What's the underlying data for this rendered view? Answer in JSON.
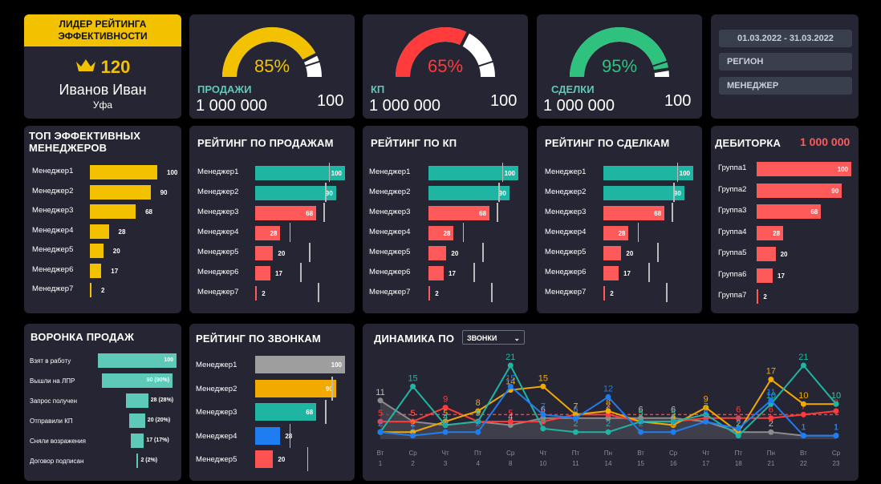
{
  "leader": {
    "banner": "ЛИДЕР РЕЙТИНГА ЭФФЕКТИВНОСТИ",
    "score": "120",
    "name": "Иванов Иван",
    "city": "Уфа",
    "crown_icon": "crown-icon",
    "accent": "#f2c200"
  },
  "gauges": [
    {
      "pct_label": "85%",
      "fraction": 0.85,
      "label": "ПРОДАЖИ",
      "value": "1 000 000",
      "target": "100",
      "color": "#f2c200"
    },
    {
      "pct_label": "65%",
      "fraction": 0.65,
      "label": "КП",
      "value": "1 000 000",
      "target": "100",
      "color": "#ff3b3b"
    },
    {
      "pct_label": "95%",
      "fraction": 0.95,
      "label": "СДЕЛКИ",
      "value": "1 000 000",
      "target": "100",
      "color": "#2ec27e"
    }
  ],
  "filters": {
    "period": "01.03.2022 - 31.03.2022",
    "region": "РЕГИОН",
    "manager": "МЕНЕДЖЕР"
  },
  "top_managers": {
    "title": "ТОП ЭФФЕКТИВНЫХ МЕНЕДЖЕРОВ",
    "rows": [
      {
        "label": "Менеджер1",
        "value": 100
      },
      {
        "label": "Менеджер2",
        "value": 90
      },
      {
        "label": "Менеджер3",
        "value": 68
      },
      {
        "label": "Менеджер4",
        "value": 28
      },
      {
        "label": "Менеджер5",
        "value": 20
      },
      {
        "label": "Менеджер6",
        "value": 17
      },
      {
        "label": "Менеджер7",
        "value": 2
      }
    ]
  },
  "rating_sales": {
    "title": "РЕЙТИНГ ПО ПРОДАЖАМ",
    "rows": [
      {
        "label": "Менеджер1",
        "value": 100,
        "target": 82
      },
      {
        "label": "Менеджер2",
        "value": 90,
        "target": 78
      },
      {
        "label": "Менеджер3",
        "value": 68,
        "target": 76
      },
      {
        "label": "Менеджер4",
        "value": 28,
        "target": 38
      },
      {
        "label": "Менеджер5",
        "value": 20,
        "target": 60
      },
      {
        "label": "Менеджер6",
        "value": 17,
        "target": 50
      },
      {
        "label": "Менеджер7",
        "value": 2,
        "target": 70
      }
    ]
  },
  "rating_kp": {
    "title": "РЕЙТИНГ ПО КП",
    "rows": [
      {
        "label": "Менеджер1",
        "value": 100,
        "target": 82
      },
      {
        "label": "Менеджер2",
        "value": 90,
        "target": 78
      },
      {
        "label": "Менеджер3",
        "value": 68,
        "target": 76
      },
      {
        "label": "Менеджер4",
        "value": 28,
        "target": 38
      },
      {
        "label": "Менеджер5",
        "value": 20,
        "target": 60
      },
      {
        "label": "Менеджер6",
        "value": 17,
        "target": 50
      },
      {
        "label": "Менеджер7",
        "value": 2,
        "target": 70
      }
    ]
  },
  "rating_deals": {
    "title": "РЕЙТИНГ ПО СДЕЛКАМ",
    "rows": [
      {
        "label": "Менеджер1",
        "value": 100,
        "target": 82
      },
      {
        "label": "Менеджер2",
        "value": 90,
        "target": 78
      },
      {
        "label": "Менеджер3",
        "value": 68,
        "target": 76
      },
      {
        "label": "Менеджер4",
        "value": 28,
        "target": 38
      },
      {
        "label": "Менеджер5",
        "value": 20,
        "target": 60
      },
      {
        "label": "Менеджер6",
        "value": 17,
        "target": 50
      },
      {
        "label": "Менеджер7",
        "value": 2,
        "target": 70
      }
    ]
  },
  "debt": {
    "title": "ДЕБИТОРКА",
    "total": "1 000 000",
    "rows": [
      {
        "label": "Группа1",
        "value": 100
      },
      {
        "label": "Группа2",
        "value": 90
      },
      {
        "label": "Группа3",
        "value": 68
      },
      {
        "label": "Группа4",
        "value": 28
      },
      {
        "label": "Группа5",
        "value": 20
      },
      {
        "label": "Группа6",
        "value": 17
      },
      {
        "label": "Группа7",
        "value": 2
      }
    ]
  },
  "funnel": {
    "title": "ВОРОНКА ПРОДАЖ",
    "rows": [
      {
        "label": "Взят в работу",
        "value": 100,
        "text": "100"
      },
      {
        "label": "Вышли на ЛПР",
        "value": 90,
        "text": "90 (90%)"
      },
      {
        "label": "Запрос получен",
        "value": 28,
        "text": "28 (28%)"
      },
      {
        "label": "Отправили КП",
        "value": 20,
        "text": "20 (20%)"
      },
      {
        "label": "Сняли возражения",
        "value": 17,
        "text": "17 (17%)"
      },
      {
        "label": "Договор подписан",
        "value": 2,
        "text": "2 (2%)"
      }
    ]
  },
  "calls": {
    "title": "РЕЙТИНГ ПО ЗВОНКАМ",
    "rows": [
      {
        "label": "Менеджер1",
        "value": 100,
        "color": "#9e9e9e",
        "target": null
      },
      {
        "label": "Менеджер2",
        "value": 90,
        "color": "#f2a900",
        "target": 85
      },
      {
        "label": "Менеджер3",
        "value": 68,
        "color": "#1fb5a3",
        "target": 78
      },
      {
        "label": "Менеджер4",
        "value": 28,
        "color": "#1e7df0",
        "target": 38
      },
      {
        "label": "Менеджер5",
        "value": 20,
        "color": "#ff5252",
        "target": 58
      }
    ]
  },
  "dynamics": {
    "title": "ДИНАМИКА ПО",
    "dropdown": "ЗВОНКИ",
    "chart_data": {
      "type": "line",
      "x_days": [
        "Вт",
        "Ср",
        "Чт",
        "Пт",
        "Ср",
        "Чт",
        "Пт",
        "Пн",
        "Вт",
        "Ср",
        "Чт",
        "Пт",
        "Пн",
        "Вт",
        "Ср"
      ],
      "x_dates": [
        "1",
        "2",
        "3",
        "4",
        "8",
        "10",
        "11",
        "14",
        "15",
        "16",
        "17",
        "18",
        "21",
        "22",
        "23"
      ],
      "target": 7,
      "series": [
        {
          "color": "#8c8c8c",
          "values": [
            11,
            5,
            4,
            5,
            4,
            6,
            6,
            6,
            6,
            6,
            5,
            2,
            2,
            1,
            1
          ]
        },
        {
          "color": "#ff3b3b",
          "values": [
            5,
            5,
            9,
            5,
            5,
            5,
            7,
            7,
            5,
            5,
            6,
            6,
            6,
            7,
            8
          ]
        },
        {
          "color": "#f2a900",
          "values": [
            2,
            2,
            5,
            8,
            14,
            15,
            7,
            8,
            5,
            4,
            9,
            2,
            17,
            10,
            10
          ]
        },
        {
          "color": "#1fb5a3",
          "values": [
            2,
            15,
            4,
            5,
            21,
            3,
            2,
            2,
            5,
            5,
            7,
            1,
            10,
            21,
            10
          ]
        },
        {
          "color": "#1e7df0",
          "values": [
            2,
            1,
            2,
            2,
            15,
            7,
            6,
            12,
            2,
            2,
            5,
            3,
            11,
            1,
            1
          ]
        }
      ]
    }
  }
}
